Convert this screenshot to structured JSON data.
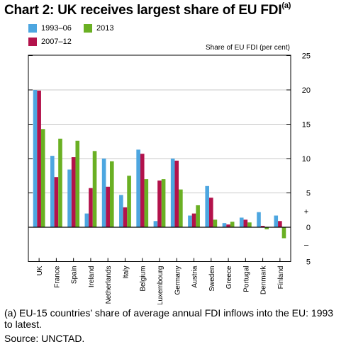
{
  "title_main": "Chart 2: UK receives largest share of EU FDI",
  "title_note": "(a)",
  "unit_label": "Share of EU FDI (per cent)",
  "footnote": "(a) EU-15 countries’ share of average annual FDI inflows into the EU: 1993 to latest.",
  "source": "Source: UNCTAD.",
  "chart_data": {
    "type": "bar",
    "categories": [
      "UK",
      "France",
      "Spain",
      "Ireland",
      "Netherlands",
      "Italy",
      "Belgium",
      "Luxembourg",
      "Germany",
      "Austria",
      "Sweden",
      "Greece",
      "Portugal",
      "Denmark",
      "Finland"
    ],
    "series": [
      {
        "name": "1993–06",
        "color": "#4da6e0",
        "values": [
          20.0,
          10.4,
          8.4,
          2.0,
          10.0,
          4.7,
          11.3,
          0.9,
          10.0,
          1.7,
          6.0,
          0.6,
          1.4,
          2.2,
          1.7
        ]
      },
      {
        "name": "2007–12",
        "color": "#b3124b",
        "values": [
          19.9,
          7.3,
          10.2,
          5.7,
          5.9,
          2.9,
          10.7,
          6.8,
          9.7,
          2.0,
          4.3,
          0.4,
          1.1,
          0.2,
          0.9
        ]
      },
      {
        "name": "2013",
        "color": "#6ab023",
        "values": [
          14.3,
          12.9,
          12.6,
          11.1,
          9.6,
          7.5,
          7.0,
          7.0,
          5.5,
          3.2,
          1.1,
          0.8,
          0.7,
          -0.3,
          -1.6
        ]
      }
    ],
    "ylim": [
      -5,
      25
    ],
    "yticks": [
      -5,
      0,
      5,
      10,
      15,
      20,
      25
    ],
    "ytick_labels": [
      "5",
      "0",
      "5",
      "10",
      "15",
      "20",
      "25"
    ],
    "sign_markers": [
      "+",
      "–"
    ],
    "grid": true,
    "legend_position": "top-left"
  }
}
